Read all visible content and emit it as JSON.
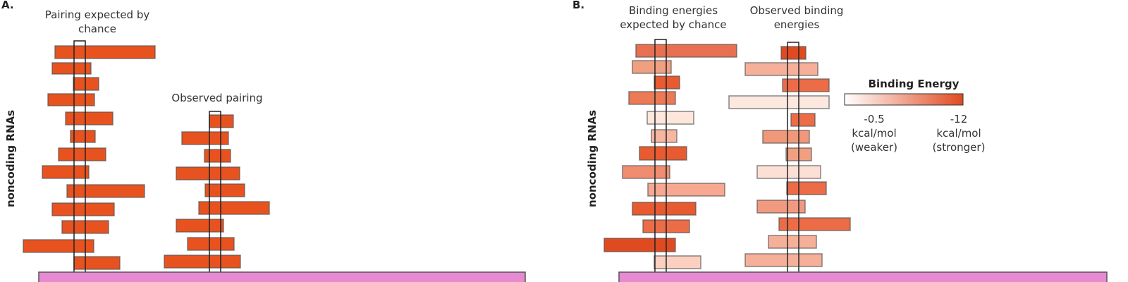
{
  "panel_a": {
    "label": "A.",
    "chance_title": "Pairing expected by chance",
    "observed_title": "Observed pairing",
    "y_axis_label": "noncoding RNAs"
  },
  "panel_b": {
    "label": "B.",
    "chance_title": "Binding energies expected by chance",
    "observed_title": "Observed binding energies",
    "y_axis_label": "noncoding RNAs",
    "legend": {
      "title": "Binding Energy",
      "low_value": "-0.5",
      "low_unit": "kcal/mol",
      "low_note": "(weaker)",
      "high_value": "-12",
      "high_unit": "kcal/mol",
      "high_note": "(stronger)"
    }
  }
}
